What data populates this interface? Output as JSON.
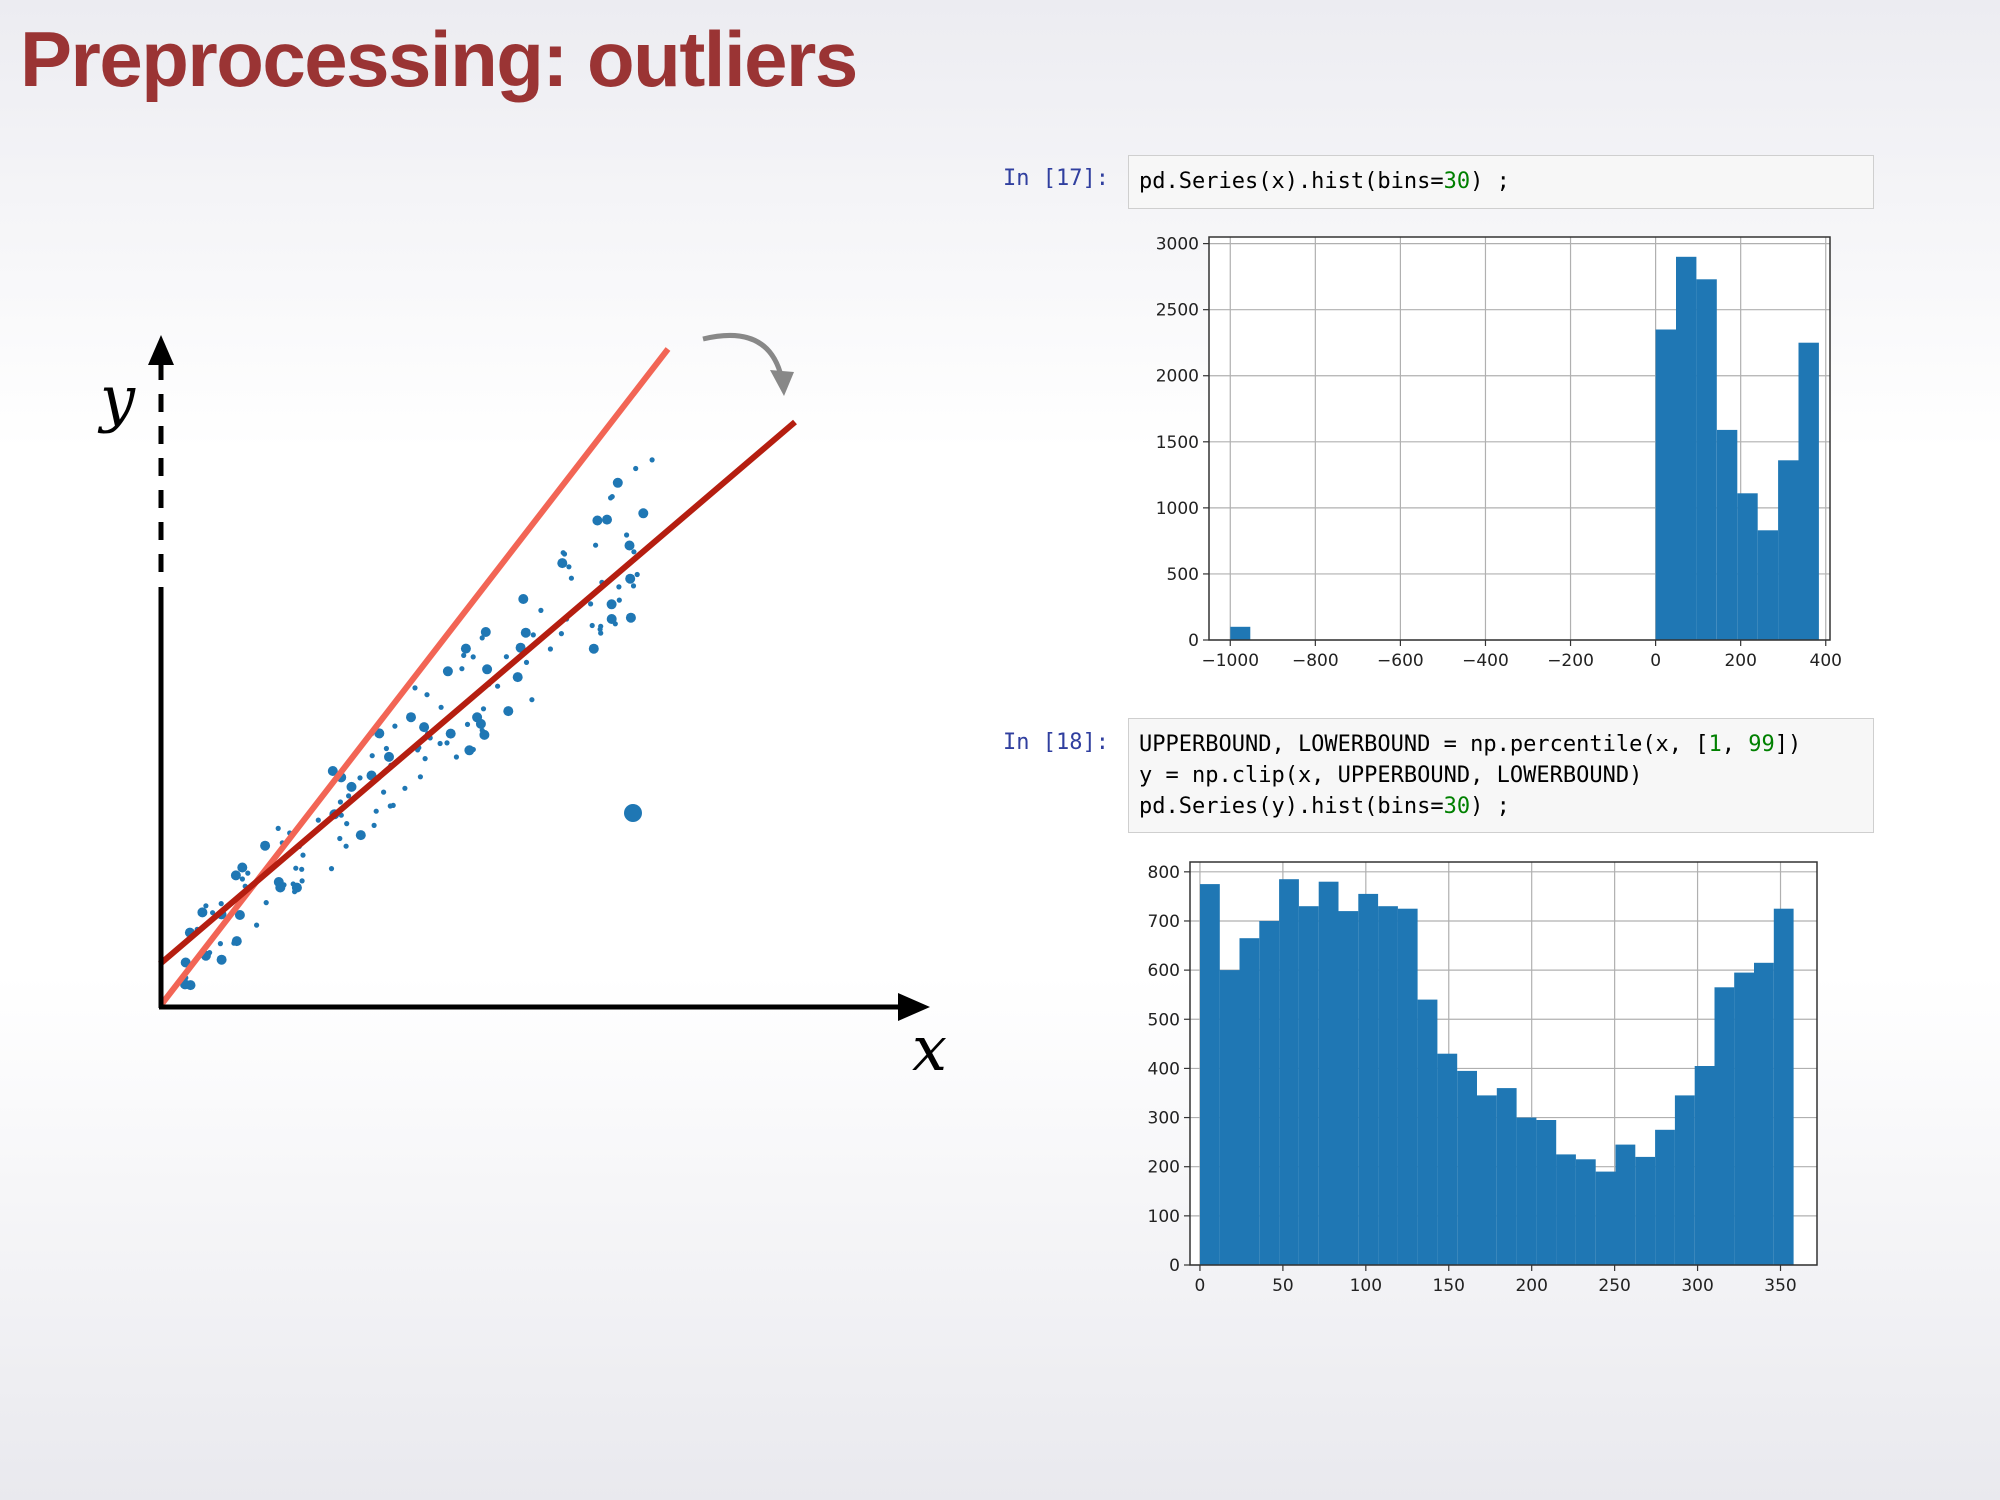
{
  "title": "Preprocessing: outliers",
  "diagram": {
    "y_label": "y",
    "x_label": "x",
    "colors": {
      "points": "#1f77b4",
      "fit_before": "#f26555",
      "fit_after": "#b51e10",
      "arrow": "#888888",
      "axes": "#000000"
    },
    "icons": [
      "curved-arrow-icon"
    ]
  },
  "cells": [
    {
      "prompt": "In [17]:",
      "code": [
        [
          {
            "t": "pd.Series(x).hist(bins="
          },
          {
            "t": "30",
            "num": true
          },
          {
            "t": ") ;"
          }
        ]
      ]
    },
    {
      "prompt": "In [18]:",
      "code": [
        [
          {
            "t": "UPPERBOUND, LOWERBOUND = np.percentile(x, ["
          },
          {
            "t": "1",
            "num": true
          },
          {
            "t": ", "
          },
          {
            "t": "99",
            "num": true
          },
          {
            "t": "])"
          }
        ],
        [
          {
            "t": "y = np.clip(x, UPPERBOUND, LOWERBOUND)"
          }
        ],
        [
          {
            "t": "pd.Series(y).hist(bins="
          },
          {
            "t": "30",
            "num": true
          },
          {
            "t": ") ;"
          }
        ]
      ]
    }
  ],
  "chart_data": [
    {
      "type": "bar",
      "xlim": [
        -1050,
        410
      ],
      "ylim": [
        0,
        3050
      ],
      "x_ticks": [
        -1000,
        -800,
        -600,
        -400,
        -200,
        0,
        200,
        400
      ],
      "x_tick_labels": [
        "−1000",
        "−800",
        "−600",
        "−400",
        "−200",
        "0",
        "200",
        "400"
      ],
      "y_ticks": [
        0,
        500,
        1000,
        1500,
        2000,
        2500,
        3000
      ],
      "y_tick_labels": [
        "0",
        "500",
        "1000",
        "1500",
        "2000",
        "2500",
        "3000"
      ],
      "grid": true,
      "bar_color": "#1f77b4",
      "bins": [
        {
          "x0": -1000,
          "x1": -953,
          "value": 100
        },
        {
          "x0": 0,
          "x1": 48,
          "value": 2350
        },
        {
          "x0": 48,
          "x1": 96,
          "value": 2900
        },
        {
          "x0": 96,
          "x1": 144,
          "value": 2730
        },
        {
          "x0": 144,
          "x1": 192,
          "value": 1590
        },
        {
          "x0": 192,
          "x1": 240,
          "value": 1110
        },
        {
          "x0": 240,
          "x1": 288,
          "value": 830
        },
        {
          "x0": 288,
          "x1": 336,
          "value": 1360
        },
        {
          "x0": 336,
          "x1": 384,
          "value": 2250
        }
      ]
    },
    {
      "type": "bar",
      "xlim": [
        -6,
        372
      ],
      "ylim": [
        0,
        820
      ],
      "x_ticks": [
        0,
        50,
        100,
        150,
        200,
        250,
        300,
        350
      ],
      "x_tick_labels": [
        "0",
        "50",
        "100",
        "150",
        "200",
        "250",
        "300",
        "350"
      ],
      "y_ticks": [
        0,
        100,
        200,
        300,
        400,
        500,
        600,
        700,
        800
      ],
      "y_tick_labels": [
        "0",
        "100",
        "200",
        "300",
        "400",
        "500",
        "600",
        "700",
        "800"
      ],
      "grid": true,
      "bar_color": "#1f77b4",
      "bin_start": 0,
      "bin_width": 11.93,
      "values": [
        775,
        600,
        665,
        700,
        785,
        730,
        780,
        720,
        755,
        730,
        725,
        540,
        430,
        395,
        345,
        360,
        300,
        295,
        225,
        215,
        190,
        245,
        220,
        275,
        345,
        405,
        565,
        595,
        615,
        725
      ]
    }
  ]
}
